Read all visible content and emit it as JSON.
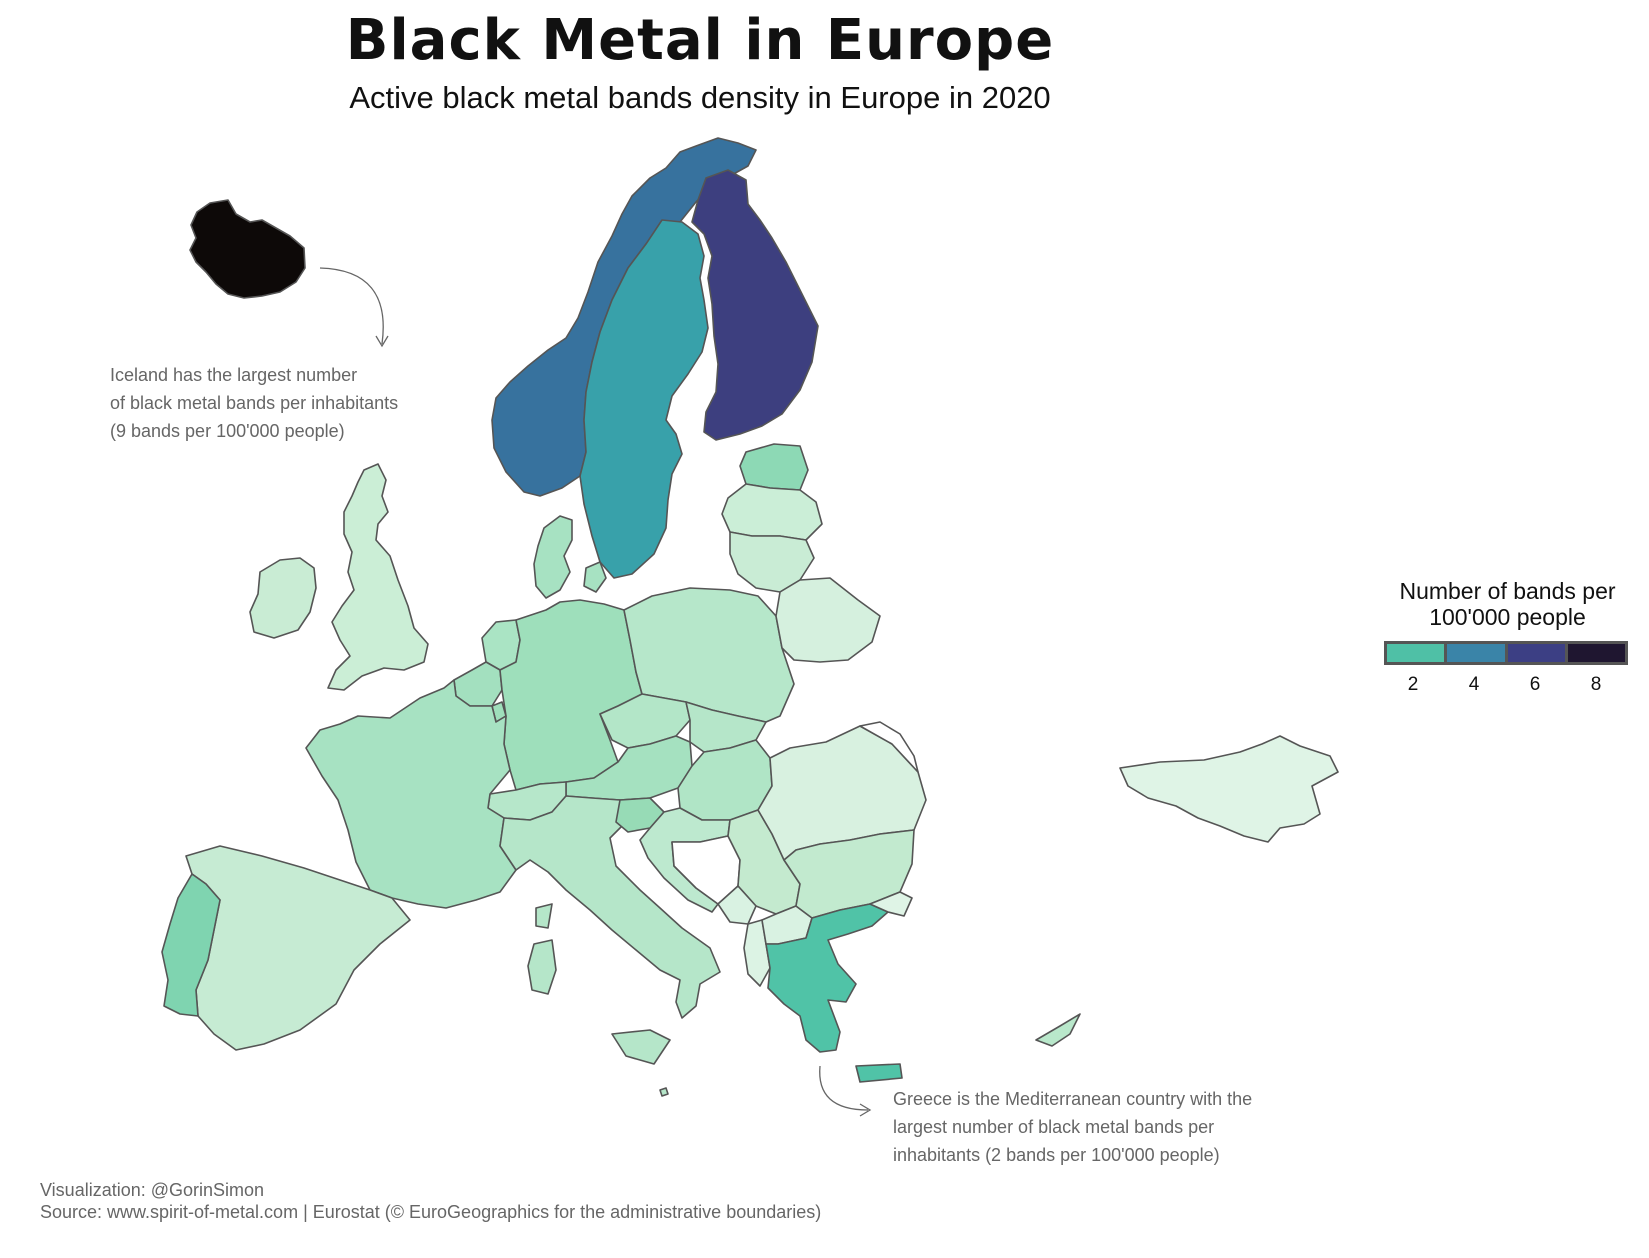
{
  "header": {
    "title": "Black Metal in Europe",
    "subtitle": "Active black metal bands density in Europe in 2020"
  },
  "annotations": {
    "iceland": [
      "Iceland has the largest number",
      "of black metal bands per inhabitants",
      "(9 bands per 100'000 people)"
    ],
    "greece": [
      "Greece is the Mediterranean country with the",
      "largest number of black metal bands per",
      "inhabitants (2 bands per 100'000 people)"
    ]
  },
  "legend": {
    "title_line1": "Number of bands per",
    "title_line2": "100'000 people",
    "swatches": [
      "#4fc0a6",
      "#3a84a8",
      "#3c3f84",
      "#1f1630"
    ],
    "ticks": [
      "2",
      "4",
      "6",
      "8"
    ]
  },
  "credits": {
    "visualization": "Visualization: @GorinSimon",
    "source": "Source: www.spirit-of-metal.com | Eurostat (© EuroGeographics for the administrative boundaries)"
  },
  "map": {
    "border_color": "#555555",
    "countries": [
      {
        "name": "Iceland",
        "color": "#0d0908"
      },
      {
        "name": "Norway",
        "color": "#37729e"
      },
      {
        "name": "Sweden",
        "color": "#38a1aa"
      },
      {
        "name": "Finland",
        "color": "#3d3f7f"
      },
      {
        "name": "Estonia",
        "color": "#8dd9b5"
      },
      {
        "name": "Latvia",
        "color": "#cbeed7"
      },
      {
        "name": "Lithuania",
        "color": "#c9ecd5"
      },
      {
        "name": "Denmark",
        "color": "#a7e2c2"
      },
      {
        "name": "United Kingdom",
        "color": "#cbeed6"
      },
      {
        "name": "Ireland",
        "color": "#c9ecd4"
      },
      {
        "name": "Netherlands",
        "color": "#aae4c4"
      },
      {
        "name": "Belgium",
        "color": "#a3e0bf"
      },
      {
        "name": "Luxembourg",
        "color": "#9fdfbb"
      },
      {
        "name": "Germany",
        "color": "#9edfbb"
      },
      {
        "name": "Poland",
        "color": "#b6e7ca"
      },
      {
        "name": "Belarus",
        "color": "#d5f0de"
      },
      {
        "name": "Czechia",
        "color": "#b3e6c8"
      },
      {
        "name": "Slovakia",
        "color": "#b5e6c9"
      },
      {
        "name": "Austria",
        "color": "#a5e1c0"
      },
      {
        "name": "Switzerland",
        "color": "#b6e7ca"
      },
      {
        "name": "France",
        "color": "#a7e2c2"
      },
      {
        "name": "Spain",
        "color": "#c6ebd3"
      },
      {
        "name": "Portugal",
        "color": "#7fd4b0"
      },
      {
        "name": "Italy",
        "color": "#b5e6c9"
      },
      {
        "name": "Slovenia",
        "color": "#97dbb6"
      },
      {
        "name": "Hungary",
        "color": "#b0e5c6"
      },
      {
        "name": "Croatia",
        "color": "#bde9cf"
      },
      {
        "name": "Bosnia",
        "color": "#ffffff"
      },
      {
        "name": "Serbia",
        "color": "#c4eacf"
      },
      {
        "name": "Montenegro",
        "color": "#d9f2e2"
      },
      {
        "name": "Albania",
        "color": "#dcf3e4"
      },
      {
        "name": "North Macedonia",
        "color": "#d9f2e2"
      },
      {
        "name": "Romania",
        "color": "#d8f1e0"
      },
      {
        "name": "Moldova",
        "color": "#ffffff"
      },
      {
        "name": "Bulgaria",
        "color": "#c2eacf"
      },
      {
        "name": "Greece",
        "color": "#50c3a7"
      },
      {
        "name": "Turkey",
        "color": "#dff4e6"
      },
      {
        "name": "Cyprus",
        "color": "#b9e8cb"
      },
      {
        "name": "Malta",
        "color": "#b5e6c9"
      }
    ]
  }
}
